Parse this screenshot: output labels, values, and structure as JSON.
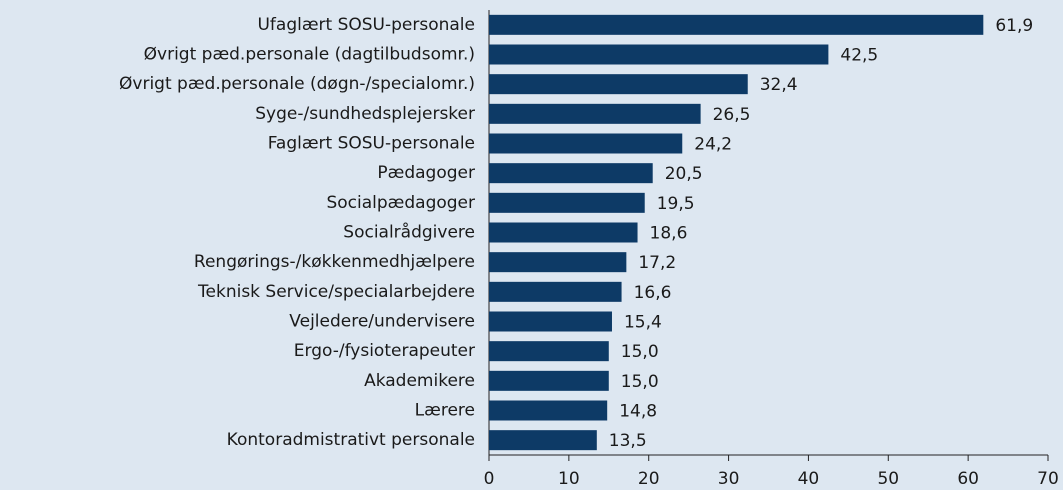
{
  "chart_data": {
    "type": "hbar",
    "categories": [
      "Ufaglært SOSU-personale",
      "Øvrigt pæd.personale (dagtilbudsomr.)",
      "Øvrigt pæd.personale (døgn-/specialomr.)",
      "Syge-/sundhedsplejersker",
      "Faglært SOSU-personale",
      "Pædagoger",
      "Socialpædagoger",
      "Socialrådgivere",
      "Rengørings-/køkkenmedhjælpere",
      "Teknisk Service/specialarbejdere",
      "Vejledere/undervisere",
      "Ergo-/fysioterapeuter",
      "Akademikere",
      "Lærere",
      "Kontoradmistrativt personale"
    ],
    "values": [
      61.9,
      42.5,
      32.4,
      26.5,
      24.2,
      20.5,
      19.5,
      18.6,
      17.2,
      16.6,
      15.4,
      15.0,
      15.0,
      14.8,
      13.5
    ],
    "value_labels": [
      "61,9",
      "42,5",
      "32,4",
      "26,5",
      "24,2",
      "20,5",
      "19,5",
      "18,6",
      "17,2",
      "16,6",
      "15,4",
      "15,0",
      "15,0",
      "14,8",
      "13,5"
    ],
    "color": "#0d3a66",
    "xlim": [
      0,
      70
    ],
    "xticks": [
      0,
      10,
      20,
      30,
      40,
      50,
      60,
      70
    ]
  }
}
